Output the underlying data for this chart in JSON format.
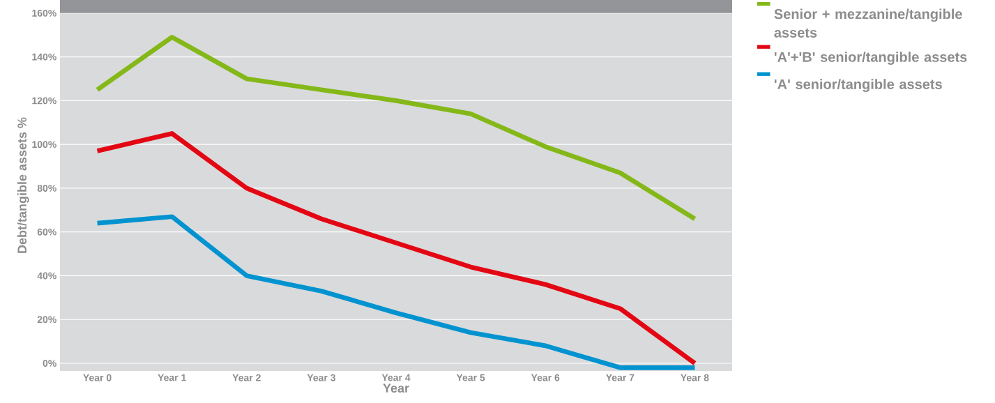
{
  "chart_data": {
    "type": "line",
    "xlabel": "Year",
    "ylabel": "Debt/tangible assets %",
    "categories": [
      "Year 0",
      "Year 1",
      "Year 2",
      "Year 3",
      "Year 4",
      "Year 5",
      "Year 6",
      "Year 7",
      "Year 8"
    ],
    "series": [
      {
        "name": "Senior + mezzanine/tangible assets",
        "color": "#84b819",
        "values": [
          125,
          149,
          130,
          125,
          120,
          114,
          99,
          87,
          66
        ]
      },
      {
        "name": "'A'+'B' senior/tangible assets",
        "color": "#e30613",
        "values": [
          97,
          105,
          80,
          66,
          55,
          44,
          36,
          25,
          0
        ]
      },
      {
        "name": "'A' senior/tangible assets",
        "color": "#0093d0",
        "values": [
          64,
          67,
          40,
          33,
          23,
          14,
          8,
          -2,
          -2
        ]
      }
    ],
    "ylim": [
      -3.5,
      166
    ],
    "yticks": [
      {
        "value": 0,
        "label": "0%"
      },
      {
        "value": 20,
        "label": "20%"
      },
      {
        "value": 40,
        "label": "40%"
      },
      {
        "value": 60,
        "label": "60%"
      },
      {
        "value": 80,
        "label": "80%"
      },
      {
        "value": 100,
        "label": "100%"
      },
      {
        "value": 120,
        "label": "120%"
      },
      {
        "value": 140,
        "label": "140%"
      },
      {
        "value": 160,
        "label": "160%"
      }
    ],
    "bands": [
      {
        "axis": "y",
        "from": 160,
        "to": 166,
        "color": "#939598"
      }
    ],
    "grid": "y",
    "legend": "top right",
    "marker": "none",
    "line_style": "solid"
  }
}
